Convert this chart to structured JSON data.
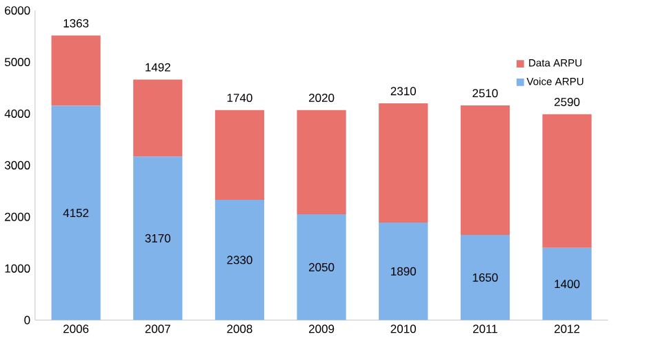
{
  "chart_data": {
    "type": "bar",
    "stacked": true,
    "categories": [
      "2006",
      "2007",
      "2008",
      "2009",
      "2010",
      "2011",
      "2012"
    ],
    "series": [
      {
        "name": "Voice ARPU",
        "color": "#7fb3ea",
        "values": [
          4152,
          3170,
          2330,
          2050,
          1890,
          1650,
          1400
        ]
      },
      {
        "name": "Data ARPU",
        "color": "#e9726d",
        "values": [
          1363,
          1492,
          1740,
          2020,
          2310,
          2510,
          2590
        ]
      }
    ],
    "ylim": [
      0,
      6000
    ],
    "yticks": [
      0,
      1000,
      2000,
      3000,
      4000,
      5000,
      6000
    ],
    "data_labels": true,
    "legend": "top right"
  }
}
